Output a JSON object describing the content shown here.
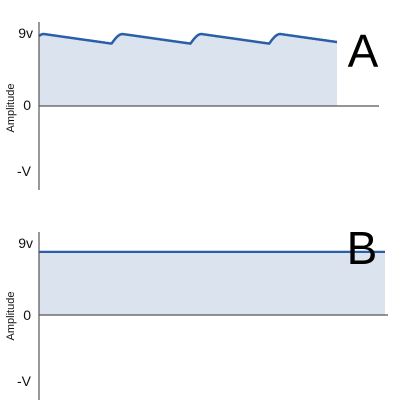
{
  "chart_data": [
    {
      "type": "area",
      "panel_label": "A",
      "ylabel": "Amplitude",
      "y_tick_labels": {
        "top": "9v",
        "zero": "0",
        "bottom": "-V"
      },
      "ylim": [
        -1,
        1
      ],
      "peak": 0.9,
      "ripple_valley": 0.78,
      "ripple_cycles": 4,
      "fill_color": "#dbe3ee",
      "line_color": "#2a5fa8"
    },
    {
      "type": "area",
      "panel_label": "B",
      "ylabel": "Amplitude",
      "y_tick_labels": {
        "top": "9v",
        "zero": "0",
        "bottom": "-V"
      },
      "ylim": [
        -1,
        1
      ],
      "level": 0.8,
      "fill_color": "#dbe3ee",
      "line_color": "#2a5fa8"
    }
  ]
}
